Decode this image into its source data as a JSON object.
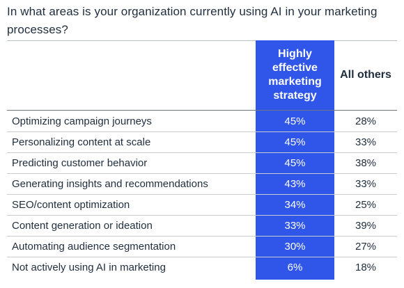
{
  "title": "In what areas is your organization currently using AI in your marketing processes?",
  "colors": {
    "highlight": "#2f56e8",
    "text": "#1f2d3d"
  },
  "chart_data": {
    "type": "table",
    "title": "In what areas is your organization currently using AI in your marketing processes?",
    "columns": [
      "Highly effective marketing strategy",
      "All others"
    ],
    "categories": [
      "Optimizing campaign journeys",
      "Personalizing content at scale",
      "Predicting customer behavior",
      "Generating insights and recommendations",
      "SEO/content optimization",
      "Content generation or ideation",
      "Automating audience segmentation",
      "Not actively using AI in marketing"
    ],
    "series": [
      {
        "name": "Highly effective marketing strategy",
        "values": [
          45,
          45,
          45,
          43,
          34,
          33,
          30,
          6
        ]
      },
      {
        "name": "All others",
        "values": [
          28,
          33,
          38,
          33,
          25,
          39,
          27,
          18
        ]
      }
    ],
    "unit": "%"
  }
}
